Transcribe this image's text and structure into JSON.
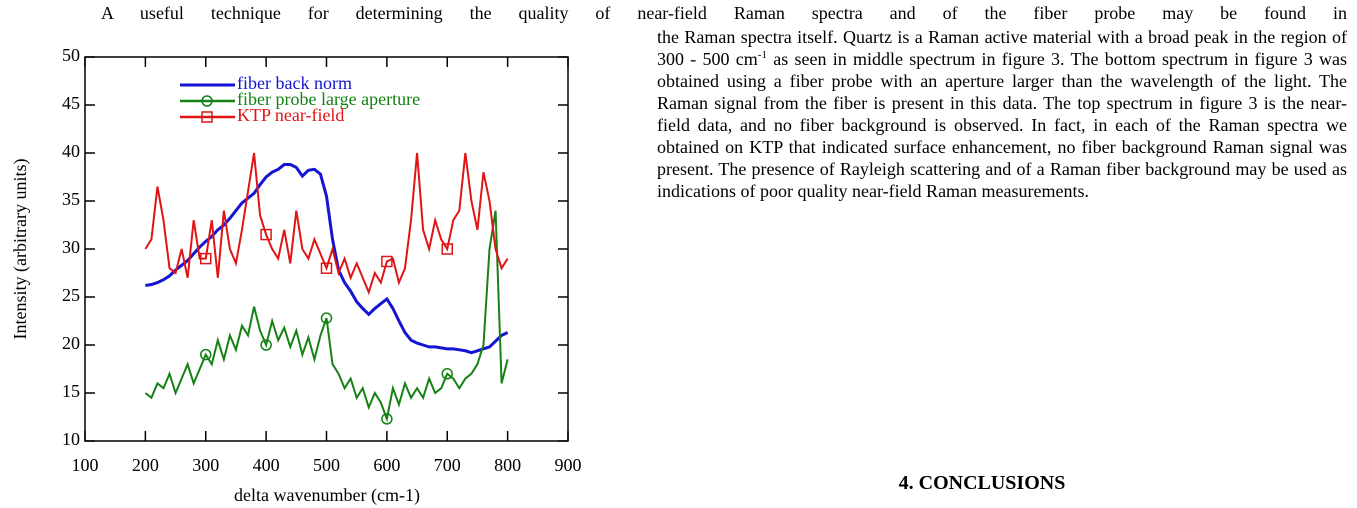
{
  "intro_line": "A useful technique for determining the quality of near-field Raman spectra and of the fiber probe may be found in",
  "paragraph": {
    "before": "the Raman spectra itself.  Quartz is a Raman active material with a broad peak in the region of 300 - 500 cm",
    "sup": "-1",
    "after": " as seen in middle spectrum in figure 3.  The bottom spectrum in figure 3 was obtained using a fiber probe with an aperture larger than the wavelength of the light.  The Raman signal from the fiber is present in this data.  The top spectrum in figure 3 is the near-field data, and no fiber background is observed.  In fact, in each of the Raman spectra we obtained on KTP that indicated surface enhancement, no fiber background Raman signal was present.  The presence of Rayleigh scattering and of a Raman fiber background may be used as indications of poor quality near-field Raman measurements."
  },
  "heading": "4. CONCLUSIONS",
  "chart_data": {
    "type": "line",
    "x_label": "delta wavenumber (cm-1)",
    "y_label": "Intensity (arbitrary units)",
    "xlim": [
      100,
      900
    ],
    "xticks": [
      100,
      200,
      300,
      400,
      500,
      600,
      700,
      800,
      900
    ],
    "ylim": [
      10,
      50
    ],
    "yticks": [
      10,
      15,
      20,
      25,
      30,
      35,
      40,
      45,
      50
    ],
    "x": [
      200,
      210,
      220,
      230,
      240,
      250,
      260,
      270,
      280,
      290,
      300,
      310,
      320,
      330,
      340,
      350,
      360,
      370,
      380,
      390,
      400,
      410,
      420,
      430,
      440,
      450,
      460,
      470,
      480,
      490,
      500,
      510,
      520,
      530,
      540,
      550,
      560,
      570,
      580,
      590,
      600,
      610,
      620,
      630,
      640,
      650,
      660,
      670,
      680,
      690,
      700,
      710,
      720,
      730,
      740,
      750,
      760,
      770,
      780,
      790,
      800
    ],
    "series": [
      {
        "name": "fiber back norm",
        "color": "#1414d2",
        "marker": "none",
        "values": [
          26.2,
          26.3,
          26.5,
          26.8,
          27.2,
          27.8,
          28.3,
          28.8,
          29.5,
          30.2,
          30.8,
          31.3,
          32,
          32.5,
          33.2,
          34,
          34.8,
          35.3,
          35.8,
          36.7,
          37.5,
          38,
          38.3,
          38.8,
          38.8,
          38.5,
          37.6,
          38.2,
          38.3,
          37.8,
          35.5,
          31,
          27.8,
          26.5,
          25.6,
          24.5,
          23.8,
          23.2,
          23.8,
          24.3,
          24.8,
          23.8,
          22.5,
          21.3,
          20.5,
          20.2,
          20,
          19.8,
          19.8,
          19.7,
          19.6,
          19.6,
          19.5,
          19.4,
          19.2,
          19.4,
          19.6,
          19.8,
          20.4,
          21,
          21.3
        ]
      },
      {
        "name": "fiber probe large aperture",
        "color": "#148214",
        "marker": "circle",
        "values": [
          15,
          14.5,
          16,
          15.5,
          17,
          15,
          16.5,
          18,
          16,
          17.5,
          19,
          18,
          20.5,
          18.5,
          21,
          19.5,
          22,
          21,
          24,
          21.5,
          20,
          22.5,
          20.5,
          21.8,
          19.8,
          21.5,
          19,
          20.8,
          18.5,
          21,
          22.8,
          18,
          17,
          15.5,
          16.5,
          14.5,
          15.5,
          13.5,
          15,
          14,
          12.3,
          15.5,
          13.8,
          16,
          14.5,
          15.5,
          14.5,
          16.5,
          15,
          15.5,
          17,
          16.5,
          15.5,
          16.5,
          17,
          18,
          20,
          30,
          34,
          16,
          18.5
        ]
      },
      {
        "name": "KTP near-field",
        "color": "#e01414",
        "marker": "square",
        "values": [
          30,
          31,
          36.5,
          33,
          28,
          27.5,
          30,
          27,
          33,
          29,
          29,
          33,
          27,
          34,
          30,
          28.5,
          32,
          36,
          40,
          33.5,
          31.5,
          30,
          29,
          32,
          28.5,
          34,
          30,
          29,
          31,
          29.5,
          28,
          30,
          27.5,
          29,
          27,
          28.5,
          27,
          25.5,
          27.5,
          26.5,
          28.7,
          29,
          26.5,
          28,
          33,
          40,
          32,
          30,
          33,
          31,
          30,
          33,
          34,
          40,
          35,
          32,
          38,
          35,
          30,
          28,
          29
        ]
      }
    ]
  }
}
